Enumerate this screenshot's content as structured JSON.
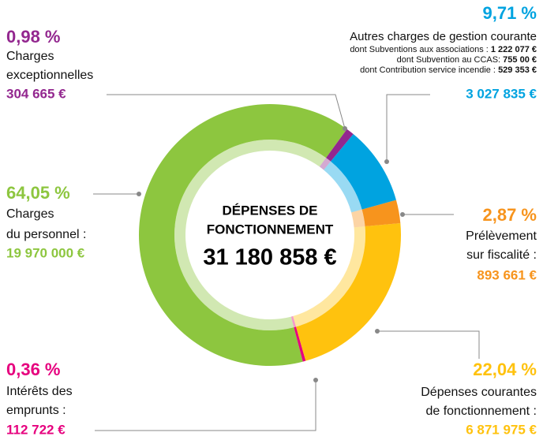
{
  "chart_data": {
    "type": "donut",
    "title": [
      "DÉPENSES DE",
      "FONCTIONNEMENT"
    ],
    "total": "31 180 858 €",
    "categories": [
      [
        "Charges",
        "exceptionnelles"
      ],
      [
        "Autres charges de gestion courante"
      ],
      [
        "Prélèvement",
        "sur fiscalité :"
      ],
      [
        "Dépenses courantes",
        "de fonctionnement :"
      ],
      [
        "Intérêts des",
        "emprunts :"
      ],
      [
        "Charges",
        "du personnel :"
      ]
    ],
    "values": [
      0.98,
      9.71,
      2.87,
      22.04,
      0.36,
      64.05
    ],
    "value_labels": [
      "0,98 %",
      "9,71 %",
      "2,87 %",
      "22,04 %",
      "0,36 %",
      "64,05 %"
    ],
    "amounts": [
      "304 665 €",
      "3 027 835 €",
      "893 661 €",
      "6 871 975 €",
      "112 722 €",
      "19 970 000 €"
    ],
    "colors": [
      "#93278f",
      "#00a3e0",
      "#f7941d",
      "#ffc20e",
      "#e6007e",
      "#8dc63f"
    ],
    "details": [
      {
        "text": "dont Subventions aux associations : ",
        "amount": "1 222 077 €"
      },
      {
        "text": "dont Subvention au CCAS: ",
        "amount": "755 00 €"
      },
      {
        "text": "dont Contribution service incendie : ",
        "amount": "529 353 €"
      }
    ]
  }
}
